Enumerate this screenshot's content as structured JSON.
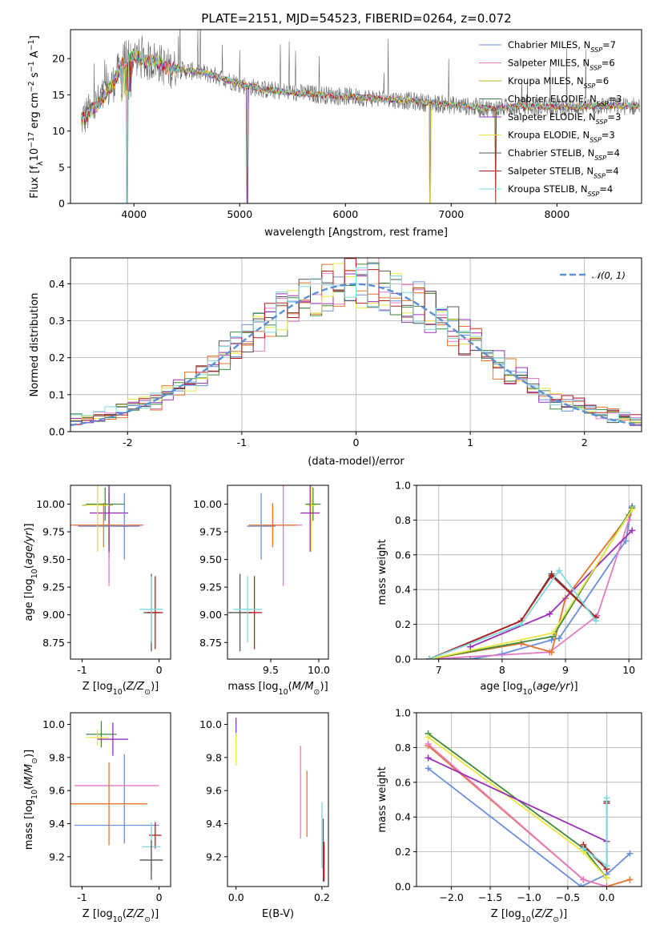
{
  "figure": {
    "title": "PLATE=2151, MJD=54523, FIBERID=0264, z=0.072"
  },
  "colors": {
    "Chabrier MILES": "#6a8fdc",
    "Salpeter MILES": "#e57ac4",
    "Kroupa MILES": "#b0b020",
    "Chabrier ELODIE": "#3f8a3f",
    "Salpeter ELODIE": "#9a30b8",
    "Kroupa ELODIE": "#e8e840",
    "Chabrier STELIB": "#555555",
    "Salpeter STELIB": "#b22020",
    "Kroupa STELIB": "#7fd9dd",
    "orange": "#e8742c",
    "gaussian": "#5b8fd6"
  },
  "chart_data": [
    {
      "id": "spectrum",
      "type": "line",
      "title": "PLATE=2151, MJD=54523, FIBERID=0264, z=0.072",
      "xlabel": "wavelength [Angstrom, rest frame]",
      "ylabel": "Flux [fλ10⁻¹⁷ erg cm⁻² s⁻¹ A⁻¹]",
      "xlim": [
        3400,
        8800
      ],
      "ylim": [
        0,
        24
      ],
      "xticks": [
        4000,
        5000,
        6000,
        7000,
        8000
      ],
      "yticks": [
        0,
        5,
        10,
        15,
        20
      ],
      "grid": false,
      "legend": "top-right",
      "series": [
        {
          "name": "Chabrier MILES, N_SSP=7",
          "label": "Chabrier MILES, N",
          "sub": "SSP",
          "n": "=7"
        },
        {
          "name": "Salpeter MILES, N_SSP=6",
          "label": "Salpeter MILES, N",
          "sub": "SSP",
          "n": "=6"
        },
        {
          "name": "Kroupa MILES, N_SSP=6",
          "label": "Kroupa MILES, N",
          "sub": "SSP",
          "n": "=6"
        },
        {
          "name": "Chabrier ELODIE, N_SSP=3",
          "label": "Chabrier ELODIE, N",
          "sub": "SSP",
          "n": "=3"
        },
        {
          "name": "Salpeter ELODIE, N_SSP=3",
          "label": "Salpeter ELODIE, N",
          "sub": "SSP",
          "n": "=3"
        },
        {
          "name": "Kroupa ELODIE, N_SSP=3",
          "label": "Kroupa ELODIE, N",
          "sub": "SSP",
          "n": "=3"
        },
        {
          "name": "Chabrier STELIB, N_SSP=4",
          "label": "Chabrier STELIB, N",
          "sub": "SSP",
          "n": "=4"
        },
        {
          "name": "Salpeter STELIB, N_SSP=4",
          "label": "Salpeter STELIB, N",
          "sub": "SSP",
          "n": "=4"
        },
        {
          "name": "Kroupa STELIB, N_SSP=4",
          "label": "Kroupa STELIB, N",
          "sub": "SSP",
          "n": "=4"
        }
      ],
      "continuum": {
        "wavelength": [
          3500,
          3600,
          3700,
          3800,
          3900,
          4000,
          4100,
          4200,
          4300,
          4400,
          4600,
          4800,
          5000,
          5200,
          5500,
          6000,
          6500,
          7000,
          7400,
          7600,
          8000,
          8500,
          8800
        ],
        "flux": [
          11.5,
          12.8,
          14.5,
          16.5,
          19.5,
          20.5,
          19.5,
          19.8,
          18.8,
          18.5,
          18.2,
          17.5,
          16.5,
          15.8,
          15.3,
          14.8,
          14.3,
          13.6,
          13.1,
          13.4,
          13.3,
          13.5,
          13.4
        ]
      },
      "absorption_dips": [
        {
          "wavelength": 3934,
          "flux": 0
        },
        {
          "wavelength": 5075,
          "flux": 0
        },
        {
          "wavelength": 6800,
          "flux": 0
        },
        {
          "wavelength": 7420,
          "flux": 0
        }
      ]
    },
    {
      "id": "residuals",
      "type": "line",
      "xlabel": "(data-model)/error",
      "ylabel": "Normed distribution",
      "xlim": [
        -2.5,
        2.5
      ],
      "ylim": [
        0,
        0.47
      ],
      "xticks": [
        -2,
        -1,
        0,
        1,
        2
      ],
      "yticks": [
        0.0,
        0.1,
        0.2,
        0.3,
        0.4
      ],
      "grid": true,
      "legend": "top-right",
      "gaussian_label": "𝒩(0, 1)",
      "gaussian": {
        "mean": 0,
        "sigma": 1
      }
    },
    {
      "id": "age-vs-Z",
      "type": "scatter",
      "xlabel": "Z [log₁₀(Z/Z⊙)]",
      "ylabel": "age  [log₁₀(age/yr)]",
      "xlim": [
        -1.15,
        0.15
      ],
      "ylim": [
        8.6,
        10.17
      ],
      "xticks": [
        -1,
        0
      ],
      "yticks": [
        8.75,
        9.0,
        9.25,
        9.5,
        9.75,
        10.0
      ],
      "grid": false,
      "points": [
        {
          "series": "Chabrier MILES",
          "x": -0.65,
          "y": 9.8,
          "xerr": 0.4,
          "yerr": 0.3
        },
        {
          "series": "Salpeter MILES",
          "x": -0.65,
          "y": 9.81,
          "xerr": 0.45,
          "yerr": 0.55
        },
        {
          "series": "Kroupa MILES",
          "x": -0.8,
          "y": 9.99,
          "xerr": 0.2,
          "yerr": 0.42
        },
        {
          "series": "Chabrier ELODIE",
          "x": -0.7,
          "y": 10.0,
          "xerr": 0.25,
          "yerr": 0.15
        },
        {
          "series": "Salpeter ELODIE",
          "x": -0.65,
          "y": 9.92,
          "xerr": 0.25,
          "yerr": 0.35
        },
        {
          "series": "Kroupa ELODIE",
          "x": -0.8,
          "y": 9.99,
          "xerr": 0.15,
          "yerr": 0.42
        },
        {
          "series": "orange",
          "x": -0.72,
          "y": 9.81,
          "xerr": 0.5,
          "yerr": 0.2
        },
        {
          "series": "Chabrier MILES",
          "x": -0.45,
          "y": 9.8,
          "xerr": 0.05,
          "yerr": 0.3
        },
        {
          "series": "Chabrier STELIB",
          "x": -0.1,
          "y": 9.02,
          "xerr": 0.1,
          "yerr": 0.35
        },
        {
          "series": "Salpeter STELIB",
          "x": -0.05,
          "y": 9.02,
          "xerr": 0.1,
          "yerr": 0.33
        },
        {
          "series": "Kroupa STELIB",
          "x": -0.1,
          "y": 9.05,
          "xerr": 0.15,
          "yerr": 0.3
        }
      ]
    },
    {
      "id": "age-vs-mass",
      "type": "scatter",
      "xlabel": "mass [log₁₀(M/M⊙)]",
      "ylabel": "",
      "xlim": [
        9.05,
        10.1
      ],
      "ylim": [
        8.6,
        10.17
      ],
      "xticks": [
        9.5,
        10.0
      ],
      "yticks": [
        8.75,
        9.0,
        9.25,
        9.5,
        9.75,
        10.0
      ],
      "grid": false,
      "points": [
        {
          "series": "Chabrier MILES",
          "x": 9.4,
          "y": 9.8,
          "xerr": 0.15,
          "yerr": 0.3
        },
        {
          "series": "Salpeter MILES",
          "x": 9.63,
          "y": 9.81,
          "xerr": 0.2,
          "yerr": 0.55
        },
        {
          "series": "orange",
          "x": 9.52,
          "y": 9.81,
          "xerr": 0.25,
          "yerr": 0.2
        },
        {
          "series": "Chabrier ELODIE",
          "x": 9.94,
          "y": 10.0,
          "xerr": 0.08,
          "yerr": 0.15
        },
        {
          "series": "Kroupa ELODIE",
          "x": 9.92,
          "y": 9.99,
          "xerr": 0.05,
          "yerr": 0.42
        },
        {
          "series": "Salpeter ELODIE",
          "x": 9.91,
          "y": 9.92,
          "xerr": 0.1,
          "yerr": 0.35
        },
        {
          "series": "Chabrier STELIB",
          "x": 9.18,
          "y": 9.02,
          "xerr": 0.12,
          "yerr": 0.35
        },
        {
          "series": "Salpeter STELIB",
          "x": 9.33,
          "y": 9.02,
          "xerr": 0.08,
          "yerr": 0.33
        },
        {
          "series": "Kroupa STELIB",
          "x": 9.26,
          "y": 9.05,
          "xerr": 0.15,
          "yerr": 0.3
        }
      ]
    },
    {
      "id": "mass-weight-vs-age",
      "type": "line",
      "xlabel": "age  [log₁₀(age/yr)]",
      "ylabel": "mass weight",
      "xlim": [
        6.65,
        10.2
      ],
      "ylim": [
        0,
        1.0
      ],
      "xticks": [
        7,
        8,
        9,
        10
      ],
      "yticks": [
        0.0,
        0.2,
        0.4,
        0.6,
        0.8,
        1.0
      ],
      "grid": true,
      "series": [
        {
          "series": "Chabrier MILES",
          "x": [
            6.85,
            7.5,
            8.0,
            8.78,
            8.9,
            9.95,
            10.05
          ],
          "y": [
            0.0,
            0.0,
            0.03,
            0.11,
            0.12,
            0.68,
            0.88
          ]
        },
        {
          "series": "Salpeter MILES",
          "x": [
            6.85,
            8.75,
            9.5,
            10.0
          ],
          "y": [
            0.0,
            0.04,
            0.25,
            0.8
          ]
        },
        {
          "series": "orange",
          "x": [
            6.85,
            8.3,
            8.78,
            9.0,
            10.0
          ],
          "y": [
            0.0,
            0.09,
            0.04,
            0.35,
            0.83
          ]
        },
        {
          "series": "Chabrier ELODIE",
          "x": [
            6.85,
            8.8,
            10.05
          ],
          "y": [
            0.0,
            0.13,
            0.87
          ]
        },
        {
          "series": "Salpeter ELODIE",
          "x": [
            7.5,
            8.75,
            10.05
          ],
          "y": [
            0.07,
            0.26,
            0.74
          ]
        },
        {
          "series": "Kroupa ELODIE",
          "x": [
            6.85,
            8.8,
            10.05
          ],
          "y": [
            0.0,
            0.15,
            0.86
          ]
        },
        {
          "series": "Chabrier STELIB",
          "x": [
            6.85,
            8.3,
            8.78,
            9.48
          ],
          "y": [
            0.0,
            0.22,
            0.49,
            0.24
          ]
        },
        {
          "series": "Salpeter STELIB",
          "x": [
            6.85,
            8.3,
            8.78,
            9.48
          ],
          "y": [
            0.0,
            0.22,
            0.48,
            0.24
          ]
        },
        {
          "series": "Kroupa STELIB",
          "x": [
            6.85,
            8.3,
            8.9,
            9.48
          ],
          "y": [
            0.0,
            0.2,
            0.51,
            0.22
          ]
        }
      ]
    },
    {
      "id": "mass-vs-Z",
      "type": "scatter",
      "xlabel": "Z [log₁₀(Z/Z⊙)]",
      "ylabel": "mass [log₁₀(M/M⊙)]",
      "xlim": [
        -1.15,
        0.15
      ],
      "ylim": [
        9.02,
        10.07
      ],
      "xticks": [
        -1,
        0
      ],
      "yticks": [
        9.2,
        9.4,
        9.6,
        9.8,
        10.0
      ],
      "grid": false,
      "points": [
        {
          "series": "Chabrier MILES",
          "x": -0.55,
          "y": 9.39,
          "xerr": 0.55,
          "yerr": 0.0
        },
        {
          "series": "Chabrier MILES",
          "x": -0.45,
          "y": 9.55,
          "xerr": 0.0,
          "yerr": 0.27
        },
        {
          "series": "Salpeter MILES",
          "x": -0.55,
          "y": 9.63,
          "xerr": 0.55,
          "yerr": 0.0
        },
        {
          "series": "orange",
          "x": -0.65,
          "y": 9.52,
          "xerr": 0.5,
          "yerr": 0.25
        },
        {
          "series": "Chabrier ELODIE",
          "x": -0.75,
          "y": 9.94,
          "xerr": 0.2,
          "yerr": 0.08
        },
        {
          "series": "Kroupa ELODIE",
          "x": -0.8,
          "y": 9.92,
          "xerr": 0.15,
          "yerr": 0.05
        },
        {
          "series": "Salpeter ELODIE",
          "x": -0.6,
          "y": 9.91,
          "xerr": 0.2,
          "yerr": 0.1
        },
        {
          "series": "Salpeter STELIB",
          "x": -0.05,
          "y": 9.33,
          "xerr": 0.08,
          "yerr": 0.08
        },
        {
          "series": "Kroupa STELIB",
          "x": -0.1,
          "y": 9.26,
          "xerr": 0.12,
          "yerr": 0.15
        },
        {
          "series": "Chabrier STELIB",
          "x": -0.1,
          "y": 9.18,
          "xerr": 0.15,
          "yerr": 0.12
        }
      ]
    },
    {
      "id": "mass-vs-EBV",
      "type": "scatter",
      "xlabel": "E(B-V)",
      "ylabel": "",
      "xlim": [
        -0.02,
        0.215
      ],
      "ylim": [
        9.02,
        10.07
      ],
      "xticks": [
        0.0,
        0.2
      ],
      "yticks": [
        9.2,
        9.4,
        9.6,
        9.8,
        10.0
      ],
      "grid": false,
      "points": [
        {
          "series": "Salpeter ELODIE",
          "x": 0.0,
          "y": 9.98,
          "yerr": 0.06
        },
        {
          "series": "Kroupa ELODIE",
          "x": 0.0,
          "y": 9.85,
          "yerr": 0.1
        },
        {
          "series": "Salpeter MILES",
          "x": 0.15,
          "y": 9.59,
          "yerr": 0.28
        },
        {
          "series": "orange",
          "x": 0.165,
          "y": 9.52,
          "yerr": 0.2
        },
        {
          "series": "Kroupa STELIB",
          "x": 0.2,
          "y": 9.33,
          "yerr": 0.2
        },
        {
          "series": "Chabrier STELIB",
          "x": 0.203,
          "y": 9.24,
          "yerr": 0.19
        },
        {
          "series": "Salpeter STELIB",
          "x": 0.205,
          "y": 9.17,
          "yerr": 0.12
        }
      ]
    },
    {
      "id": "mass-weight-vs-Z",
      "type": "line",
      "xlabel": "Z [log₁₀(Z/Z⊙)]",
      "ylabel": "mass weight",
      "xlim": [
        -2.45,
        0.45
      ],
      "ylim": [
        0,
        1.0
      ],
      "xticks": [
        -2.0,
        -1.5,
        -1.0,
        -0.5,
        0.0
      ],
      "yticks": [
        0.0,
        0.2,
        0.4,
        0.6,
        0.8,
        1.0
      ],
      "grid": true,
      "series": [
        {
          "series": "Chabrier MILES",
          "x": [
            -2.3,
            -0.33,
            0.0,
            0.3
          ],
          "y": [
            0.68,
            0.0,
            0.07,
            0.19
          ]
        },
        {
          "series": "orange",
          "x": [
            -2.3,
            -0.3,
            0.0,
            0.3
          ],
          "y": [
            0.81,
            0.04,
            0.0,
            0.04
          ]
        },
        {
          "series": "Salpeter MILES",
          "x": [
            -2.3,
            -0.3,
            0.0
          ],
          "y": [
            0.82,
            0.04,
            0.0
          ]
        },
        {
          "series": "Chabrier ELODIE",
          "x": [
            -2.3,
            -0.3,
            0.0
          ],
          "y": [
            0.88,
            0.22,
            0.05
          ]
        },
        {
          "series": "Kroupa ELODIE",
          "x": [
            -2.3,
            -0.3,
            0.0
          ],
          "y": [
            0.86,
            0.2,
            0.05
          ]
        },
        {
          "series": "Salpeter ELODIE",
          "x": [
            -2.3,
            0.0
          ],
          "y": [
            0.74,
            0.26
          ]
        },
        {
          "series": "Chabrier STELIB",
          "x": [
            -0.3,
            0.0,
            0.0
          ],
          "y": [
            0.23,
            0.1,
            0.49
          ]
        },
        {
          "series": "Salpeter STELIB",
          "x": [
            -0.3,
            0.0,
            0.0
          ],
          "y": [
            0.24,
            0.1,
            0.48
          ]
        },
        {
          "series": "Kroupa STELIB",
          "x": [
            -0.3,
            0.0,
            0.0
          ],
          "y": [
            0.22,
            0.12,
            0.51
          ]
        }
      ]
    }
  ]
}
